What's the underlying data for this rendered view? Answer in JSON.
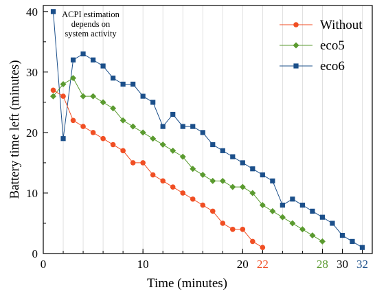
{
  "chart_data": {
    "type": "line",
    "xlabel": "Time (minutes)",
    "ylabel": "Battery time left (minutes)",
    "xlim": [
      0,
      33
    ],
    "ylim": [
      0,
      41
    ],
    "x_ticks": [
      0,
      10,
      20,
      22,
      28,
      30,
      32
    ],
    "y_ticks": [
      0,
      10,
      20,
      30,
      40
    ],
    "highlighted_ticks": [
      {
        "value": 22,
        "color": "#f04e23"
      },
      {
        "value": 28,
        "color": "#5a9a2f"
      },
      {
        "value": 32,
        "color": "#1b4f8a"
      }
    ],
    "vertical_gridlines": [
      2,
      4,
      6,
      8,
      10,
      12,
      14,
      16,
      18,
      20,
      22,
      24,
      26,
      28,
      30,
      32
    ],
    "legend_position": "top-right",
    "annotation": {
      "lines": [
        "ACPI estimation",
        "depends on",
        "system activity"
      ],
      "anchor_x": 1
    },
    "series": [
      {
        "name": "Without",
        "color": "#f04e23",
        "marker": "circle",
        "x": [
          1,
          2,
          3,
          4,
          5,
          6,
          7,
          8,
          9,
          10,
          11,
          12,
          13,
          14,
          15,
          16,
          17,
          18,
          19,
          20,
          21,
          22
        ],
        "y": [
          27,
          26,
          22,
          21,
          20,
          19,
          18,
          17,
          15,
          15,
          13,
          12,
          11,
          10,
          9,
          8,
          7,
          5,
          4,
          4,
          2,
          1
        ]
      },
      {
        "name": "eco5",
        "color": "#5a9a2f",
        "marker": "diamond",
        "x": [
          1,
          2,
          3,
          4,
          5,
          6,
          7,
          8,
          9,
          10,
          11,
          12,
          13,
          14,
          15,
          16,
          17,
          18,
          19,
          20,
          21,
          22,
          23,
          24,
          25,
          26,
          27,
          28
        ],
        "y": [
          26,
          28,
          29,
          26,
          26,
          25,
          24,
          22,
          21,
          20,
          19,
          18,
          17,
          16,
          14,
          13,
          12,
          12,
          11,
          11,
          10,
          8,
          7,
          6,
          5,
          4,
          3,
          2
        ]
      },
      {
        "name": "eco6",
        "color": "#1b4f8a",
        "marker": "square",
        "x": [
          1,
          2,
          3,
          4,
          5,
          6,
          7,
          8,
          9,
          10,
          11,
          12,
          13,
          14,
          15,
          16,
          17,
          18,
          19,
          20,
          21,
          22,
          23,
          24,
          25,
          26,
          27,
          28,
          29,
          30,
          31,
          32
        ],
        "y": [
          40,
          19,
          32,
          33,
          32,
          31,
          29,
          28,
          28,
          26,
          25,
          21,
          23,
          21,
          21,
          20,
          18,
          17,
          16,
          15,
          14,
          13,
          12,
          8,
          9,
          8,
          7,
          6,
          5,
          3,
          2,
          1
        ]
      }
    ]
  }
}
